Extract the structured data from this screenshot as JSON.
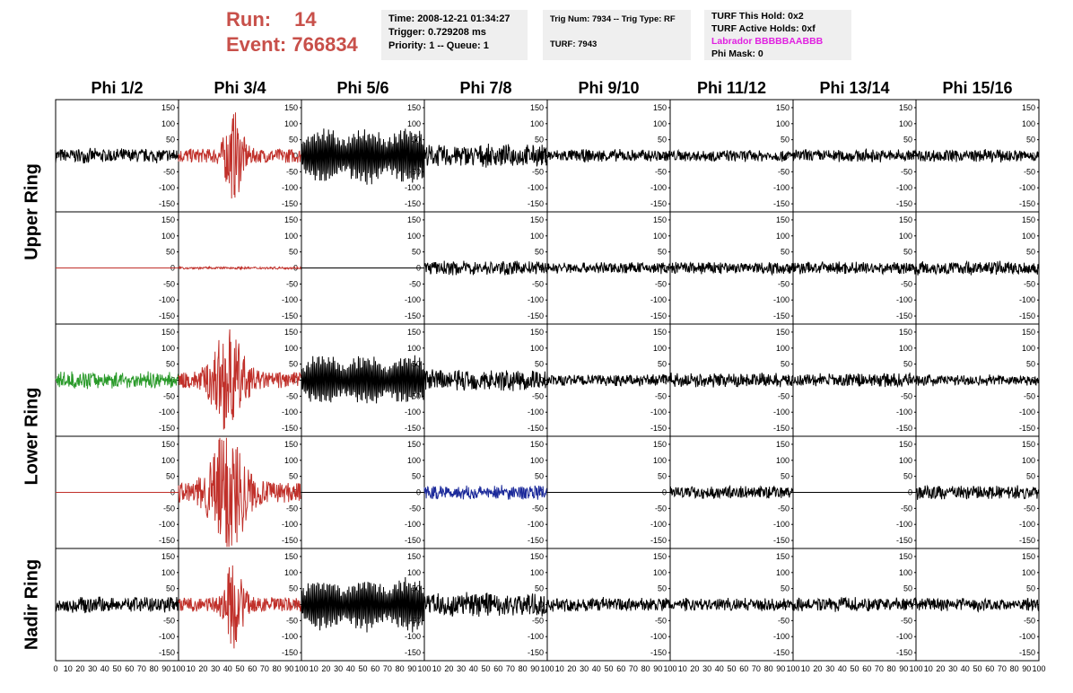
{
  "header": {
    "run_label": "Run:",
    "run_value": "14",
    "event_label": "Event:",
    "event_value": "766834"
  },
  "info_panel_1": {
    "time": "Time: 2008-12-21 01:34:27",
    "trigger": "Trigger: 0.729208 ms",
    "priority": "Priority: 1 -- Queue: 1"
  },
  "info_panel_2": {
    "trig": "Trig Num: 7934 -- Trig Type: RF",
    "turf": "TURF: 7943"
  },
  "info_panel_3": {
    "hold": "TURF This Hold: 0x2",
    "active": "TURF Active Holds: 0xf",
    "labrador": "Labrador BBBBBAABBB",
    "mask": "Phi Mask: 0"
  },
  "colors": {
    "run_text": "#c8504a",
    "labrador_text": "#e020e0",
    "trace_black": "#000000",
    "trace_red": "#c0302a",
    "trace_green": "#2a9a2a",
    "trace_blue": "#1c2a9a"
  },
  "chart_data": {
    "type": "line",
    "columns": [
      "Phi 1/2",
      "Phi 3/4",
      "Phi 5/6",
      "Phi 7/8",
      "Phi 9/10",
      "Phi 11/12",
      "Phi 13/14",
      "Phi 15/16"
    ],
    "rows": [
      "Upper Ring",
      "Lower Ring",
      "Nadir Ring"
    ],
    "ylim": [
      -175,
      175
    ],
    "xlim": [
      0,
      100
    ],
    "y_ticks": [
      "150",
      "100",
      "50",
      "0",
      "-50",
      "-100",
      "-150"
    ],
    "x_ticks": [
      "0",
      "10",
      "20",
      "30",
      "40",
      "50",
      "60",
      "70",
      "80",
      "90",
      "100"
    ],
    "panels": [
      [
        {
          "c": "black",
          "a": 25,
          "e": "n"
        },
        {
          "c": "red",
          "a": 22,
          "e": "b",
          "m": 45,
          "s": 8
        },
        {
          "c": "black",
          "a": 95,
          "e": "o"
        },
        {
          "c": "black",
          "a": 38,
          "e": "n"
        },
        {
          "c": "black",
          "a": 22,
          "e": "n"
        },
        {
          "c": "black",
          "a": 20,
          "e": "n"
        },
        {
          "c": "black",
          "a": 22,
          "e": "n"
        },
        {
          "c": "black",
          "a": 22,
          "e": "n"
        }
      ],
      [
        {
          "c": "red",
          "a": 0,
          "e": "f"
        },
        {
          "c": "red",
          "a": 4,
          "e": "n"
        },
        {
          "c": "black",
          "a": 0,
          "e": "f"
        },
        {
          "c": "black",
          "a": 24,
          "e": "n"
        },
        {
          "c": "black",
          "a": 20,
          "e": "n"
        },
        {
          "c": "black",
          "a": 22,
          "e": "n"
        },
        {
          "c": "black",
          "a": 22,
          "e": "n"
        },
        {
          "c": "black",
          "a": 24,
          "e": "n"
        }
      ],
      [
        {
          "c": "green",
          "a": 28,
          "e": "n"
        },
        {
          "c": "red",
          "a": 25,
          "e": "b",
          "m": 40,
          "s": 14
        },
        {
          "c": "black",
          "a": 85,
          "e": "o"
        },
        {
          "c": "black",
          "a": 38,
          "e": "n"
        },
        {
          "c": "black",
          "a": 20,
          "e": "n"
        },
        {
          "c": "black",
          "a": 24,
          "e": "n"
        },
        {
          "c": "black",
          "a": 24,
          "e": "n"
        },
        {
          "c": "black",
          "a": 20,
          "e": "n"
        }
      ],
      [
        {
          "c": "red",
          "a": 0,
          "e": "f"
        },
        {
          "c": "red",
          "a": 32,
          "e": "b",
          "m": 40,
          "s": 15
        },
        {
          "c": "black",
          "a": 0,
          "e": "f"
        },
        {
          "c": "blue",
          "a": 26,
          "e": "n"
        },
        {
          "c": "black",
          "a": 0,
          "e": "f"
        },
        {
          "c": "black",
          "a": 22,
          "e": "n"
        },
        {
          "c": "black",
          "a": 0,
          "e": "f"
        },
        {
          "c": "black",
          "a": 24,
          "e": "n"
        }
      ],
      [
        {
          "c": "black",
          "a": 28,
          "e": "n"
        },
        {
          "c": "red",
          "a": 22,
          "e": "b",
          "m": 45,
          "s": 8
        },
        {
          "c": "black",
          "a": 90,
          "e": "o"
        },
        {
          "c": "black",
          "a": 42,
          "e": "n"
        },
        {
          "c": "black",
          "a": 24,
          "e": "n"
        },
        {
          "c": "black",
          "a": 22,
          "e": "n"
        },
        {
          "c": "black",
          "a": 24,
          "e": "n"
        },
        {
          "c": "black",
          "a": 22,
          "e": "n"
        }
      ]
    ]
  }
}
